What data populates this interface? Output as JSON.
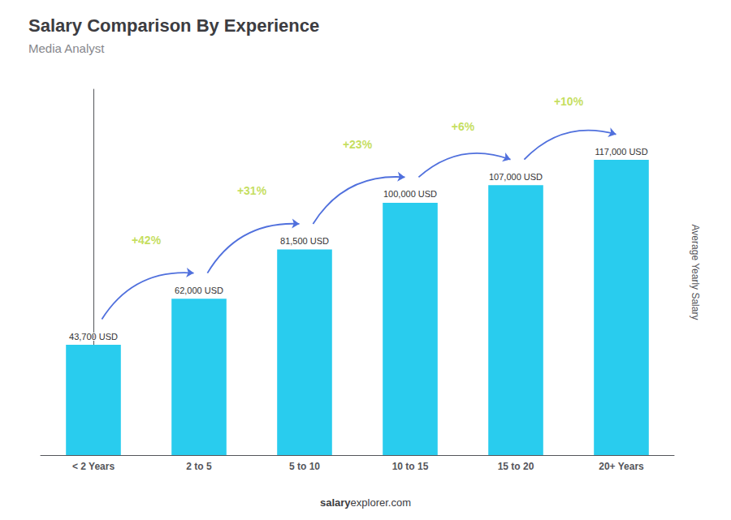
{
  "chart_data": {
    "type": "bar",
    "title": "Salary Comparison By Experience",
    "subtitle": "Media Analyst",
    "categories": [
      "< 2 Years",
      "2 to 5",
      "5 to 10",
      "10 to 15",
      "15 to 20",
      "20+ Years"
    ],
    "values": [
      43700,
      62000,
      81500,
      100000,
      107000,
      117000
    ],
    "value_labels": [
      "43,700 USD",
      "62,000 USD",
      "81,500 USD",
      "100,000 USD",
      "107,000 USD",
      "117,000 USD"
    ],
    "data_labels": true,
    "color": "#29CCEE",
    "ylabel": "Average Yearly Salary",
    "ylim": [
      0,
      145000
    ],
    "grid": false,
    "tick_labels": "x",
    "annotations": [
      "+42%",
      "+31%",
      "+23%",
      "+6%",
      "+10%"
    ],
    "watermark": [
      "salary",
      "explorer.com"
    ]
  }
}
